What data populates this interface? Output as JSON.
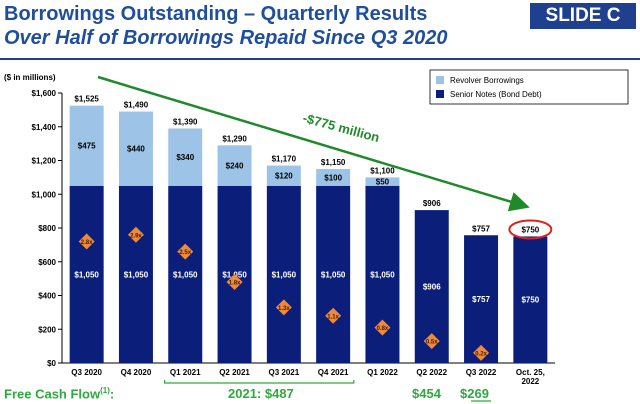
{
  "header": {
    "title": "Borrowings Outstanding – Quarterly Results",
    "subtitle": "Over Half of Borrowings Repaid Since Q3 2020",
    "slide_tag": "SLIDE C"
  },
  "colors": {
    "title": "#1f4e9c",
    "revolver": "#9dc3e6",
    "senior": "#0b1f7a",
    "diamond": "#f08a3a",
    "arrow": "#1e8a2a",
    "highlight_ring": "#e02020",
    "fcf": "#2eaa3c"
  },
  "chart_data": {
    "type": "bar",
    "stacked": true,
    "unit_label": "($ in millions)",
    "categories": [
      "Q3 2020",
      "Q4 2020",
      "Q1 2021",
      "Q2 2021",
      "Q3 2021",
      "Q4 2021",
      "Q1 2022",
      "Q2 2022",
      "Q3 2022",
      "Oct. 25, 2022"
    ],
    "series": [
      {
        "name": "Senior Notes (Bond Debt)",
        "values": [
          1050,
          1050,
          1050,
          1050,
          1050,
          1050,
          1050,
          906,
          757,
          750
        ],
        "labels": [
          "$1,050",
          "$1,050",
          "$1,050",
          "$1,050",
          "$1,050",
          "$1,050",
          "$1,050",
          "$906",
          "$757",
          "$750"
        ]
      },
      {
        "name": "Revolver Borrowings",
        "values": [
          475,
          440,
          340,
          240,
          120,
          100,
          50,
          0,
          0,
          0
        ],
        "labels": [
          "$475",
          "$440",
          "$340",
          "$240",
          "$120",
          "$100",
          "$50",
          "",
          "",
          ""
        ]
      }
    ],
    "totals": [
      "$1,525",
      "$1,490",
      "$1,390",
      "$1,290",
      "$1,170",
      "$1,150",
      "$1,100",
      "$906",
      "$757",
      "$750"
    ],
    "leverage_markers": {
      "values": [
        720,
        760,
        660,
        480,
        330,
        280,
        210,
        130,
        60,
        null
      ],
      "labels": [
        "2.8x",
        "2.9x",
        "2.5x",
        "1.8x",
        "1.3x",
        "1.1x",
        "0.8x",
        "0.5x",
        "0.2x",
        ""
      ]
    },
    "ylim": [
      0,
      1600
    ],
    "yticks": [
      0,
      200,
      400,
      600,
      800,
      1000,
      1200,
      1400,
      1600
    ],
    "ytick_labels": [
      "$0",
      "$200",
      "$400",
      "$600",
      "$800",
      "$1,000",
      "$1,200",
      "$1,400",
      "$1,600"
    ],
    "legend_position": "top-right",
    "annotation": "-$775 million",
    "highlighted_category": "Oct. 25, 2022"
  },
  "free_cash_flow": {
    "label": "Free Cash Flow",
    "footnote": "(1)",
    "suffix": ":",
    "values": [
      "2021: $487",
      "$454",
      "$269"
    ]
  }
}
